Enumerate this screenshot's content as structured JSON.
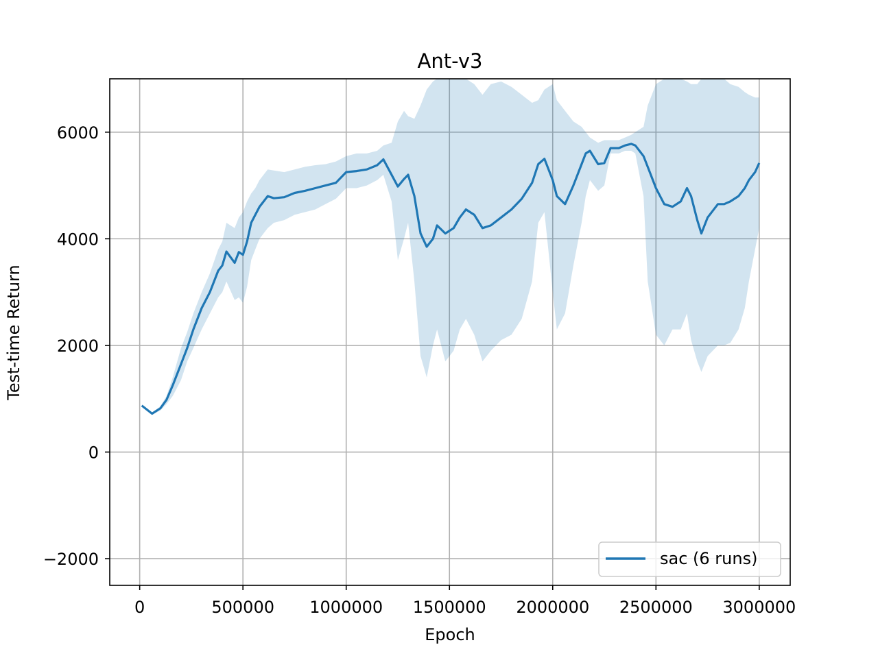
{
  "chart_data": {
    "type": "line",
    "title": "Ant-v3",
    "xlabel": "Epoch",
    "ylabel": "Test-time Return",
    "xlim": [
      -145000,
      3150000
    ],
    "ylim": [
      -2500,
      7000
    ],
    "xticks": [
      0,
      500000,
      1000000,
      1500000,
      2000000,
      2500000,
      3000000
    ],
    "xtick_labels": [
      "0",
      "500000",
      "1000000",
      "1500000",
      "2000000",
      "2500000",
      "3000000"
    ],
    "yticks": [
      -2000,
      0,
      2000,
      4000,
      6000
    ],
    "ytick_labels": [
      "−2000",
      "0",
      "2000",
      "4000",
      "6000"
    ],
    "grid": true,
    "legend_position": "lower-right",
    "colors": {
      "line": "#1f77b4",
      "band": "#1f77b4",
      "grid": "#b0b0b0"
    },
    "series": [
      {
        "name": "sac (6 runs)",
        "x": [
          10000,
          60000,
          100000,
          130000,
          160000,
          200000,
          230000,
          260000,
          300000,
          340000,
          380000,
          400000,
          420000,
          460000,
          480000,
          500000,
          520000,
          540000,
          560000,
          580000,
          620000,
          650000,
          700000,
          750000,
          800000,
          850000,
          900000,
          950000,
          1000000,
          1050000,
          1100000,
          1150000,
          1180000,
          1220000,
          1250000,
          1280000,
          1300000,
          1330000,
          1360000,
          1390000,
          1420000,
          1440000,
          1480000,
          1520000,
          1550000,
          1580000,
          1620000,
          1660000,
          1700000,
          1750000,
          1800000,
          1850000,
          1900000,
          1930000,
          1960000,
          2000000,
          2020000,
          2060000,
          2100000,
          2140000,
          2160000,
          2180000,
          2220000,
          2250000,
          2280000,
          2320000,
          2350000,
          2380000,
          2400000,
          2440000,
          2460000,
          2500000,
          2540000,
          2580000,
          2620000,
          2650000,
          2670000,
          2700000,
          2720000,
          2750000,
          2800000,
          2830000,
          2860000,
          2900000,
          2930000,
          2950000,
          2980000,
          3000000
        ],
        "y": [
          870,
          720,
          820,
          980,
          1250,
          1650,
          1950,
          2300,
          2700,
          3000,
          3400,
          3500,
          3760,
          3550,
          3750,
          3700,
          3950,
          4300,
          4450,
          4600,
          4800,
          4760,
          4780,
          4860,
          4900,
          4950,
          5000,
          5050,
          5250,
          5270,
          5300,
          5380,
          5490,
          5200,
          4980,
          5120,
          5200,
          4800,
          4100,
          3850,
          4000,
          4250,
          4100,
          4200,
          4400,
          4550,
          4450,
          4200,
          4250,
          4400,
          4550,
          4750,
          5050,
          5400,
          5500,
          5100,
          4800,
          4650,
          5000,
          5400,
          5600,
          5650,
          5400,
          5420,
          5700,
          5700,
          5750,
          5780,
          5750,
          5550,
          5350,
          4950,
          4650,
          4600,
          4700,
          4950,
          4800,
          4350,
          4100,
          4400,
          4650,
          4650,
          4700,
          4800,
          4950,
          5100,
          5250,
          5420
        ],
        "lower": [
          870,
          700,
          780,
          900,
          1050,
          1350,
          1700,
          1950,
          2300,
          2600,
          2900,
          3000,
          3200,
          2850,
          2900,
          2800,
          3100,
          3600,
          3800,
          4000,
          4200,
          4300,
          4350,
          4450,
          4500,
          4550,
          4650,
          4750,
          4950,
          4950,
          5000,
          5100,
          5200,
          4700,
          3600,
          4000,
          4300,
          3200,
          1800,
          1400,
          2000,
          2300,
          1700,
          1900,
          2300,
          2500,
          2200,
          1700,
          1900,
          2100,
          2200,
          2500,
          3200,
          4300,
          4500,
          3000,
          2300,
          2600,
          3500,
          4300,
          4800,
          5100,
          4900,
          5000,
          5600,
          5600,
          5650,
          5650,
          5600,
          4800,
          3200,
          2200,
          2000,
          2300,
          2300,
          2600,
          2100,
          1700,
          1500,
          1800,
          2000,
          2000,
          2050,
          2300,
          2700,
          3200,
          3800,
          4200
        ],
        "upper": [
          870,
          740,
          860,
          1050,
          1400,
          1950,
          2250,
          2600,
          3000,
          3350,
          3800,
          3950,
          4300,
          4200,
          4400,
          4500,
          4700,
          4850,
          4950,
          5100,
          5300,
          5280,
          5250,
          5300,
          5350,
          5380,
          5400,
          5450,
          5550,
          5600,
          5600,
          5650,
          5750,
          5800,
          6200,
          6400,
          6300,
          6250,
          6500,
          6800,
          6950,
          7100,
          7000,
          7000,
          7050,
          7100,
          6900,
          6700,
          6900,
          6950,
          6850,
          6700,
          6550,
          6600,
          6800,
          6900,
          6600,
          6400,
          6200,
          6100,
          6000,
          5900,
          5800,
          5850,
          5850,
          5850,
          5900,
          5950,
          6000,
          6100,
          6500,
          6900,
          7000,
          7000,
          7000,
          6950,
          6900,
          6900,
          7000,
          7050,
          7000,
          7000,
          6900,
          6850,
          6750,
          6700,
          6650,
          6650
        ]
      }
    ]
  }
}
